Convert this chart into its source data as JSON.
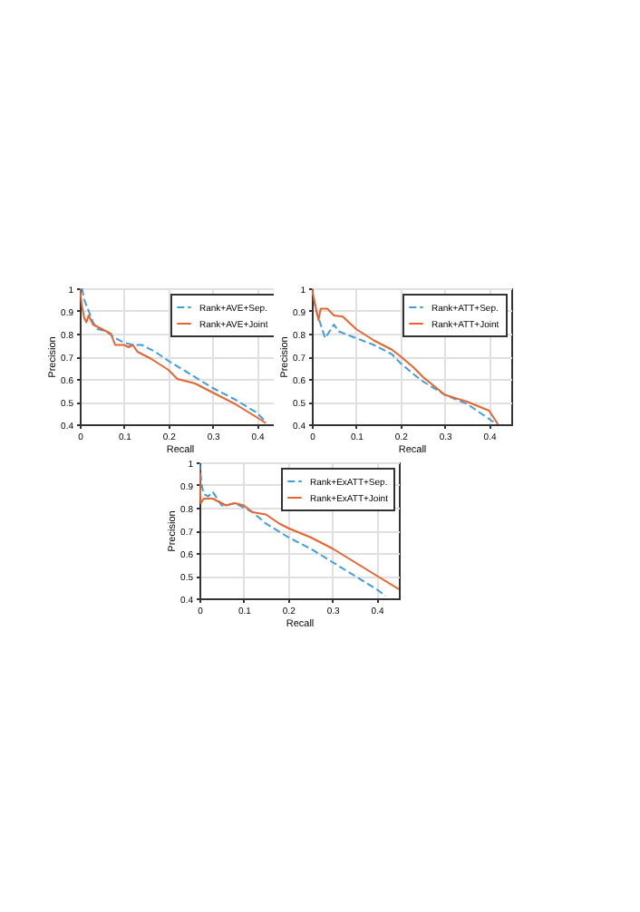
{
  "chart_data": [
    {
      "type": "line",
      "xlabel": "Recall",
      "ylabel": "Precision",
      "xlim": [
        0,
        0.45
      ],
      "ylim": [
        0.4,
        1
      ],
      "xticks": [
        0,
        0.1,
        0.2,
        0.3,
        0.4
      ],
      "yticks": [
        0.4,
        0.5,
        0.6,
        0.7,
        0.8,
        0.9,
        1
      ],
      "grid": true,
      "legend": "top right",
      "series": [
        {
          "name": "Rank+AVE+Sep.",
          "color": "#3d9de0",
          "line_style": "dashed",
          "x": [
            0.005,
            0.01,
            0.02,
            0.03,
            0.04,
            0.06,
            0.08,
            0.1,
            0.12,
            0.14,
            0.17,
            0.2,
            0.25,
            0.3,
            0.35,
            0.4,
            0.42
          ],
          "values": [
            1,
            0.95,
            0.9,
            0.85,
            0.82,
            0.81,
            0.78,
            0.76,
            0.75,
            0.75,
            0.72,
            0.68,
            0.62,
            0.56,
            0.51,
            0.45,
            0.41
          ]
        },
        {
          "name": "Rank+AVE+Joint",
          "color": "#e8642e",
          "line_style": "solid",
          "x": [
            0,
            0.005,
            0.01,
            0.015,
            0.02,
            0.03,
            0.04,
            0.05,
            0.07,
            0.08,
            0.1,
            0.11,
            0.12,
            0.13,
            0.16,
            0.2,
            0.22,
            0.26,
            0.3,
            0.35,
            0.4,
            0.42
          ],
          "values": [
            1,
            0.92,
            0.87,
            0.85,
            0.88,
            0.84,
            0.83,
            0.82,
            0.8,
            0.75,
            0.75,
            0.74,
            0.75,
            0.72,
            0.69,
            0.64,
            0.6,
            0.58,
            0.54,
            0.49,
            0.43,
            0.405
          ]
        }
      ]
    },
    {
      "type": "line",
      "xlabel": "Recall",
      "ylabel": "Precision",
      "xlim": [
        0,
        0.45
      ],
      "ylim": [
        0.4,
        1
      ],
      "xticks": [
        0,
        0.1,
        0.2,
        0.3,
        0.4
      ],
      "yticks": [
        0.4,
        0.5,
        0.6,
        0.7,
        0.8,
        0.9,
        1
      ],
      "grid": true,
      "legend": "top right",
      "series": [
        {
          "name": "Rank+ATT+Sep.",
          "color": "#3d9de0",
          "line_style": "dashed",
          "x": [
            0,
            0.01,
            0.02,
            0.03,
            0.05,
            0.06,
            0.1,
            0.14,
            0.18,
            0.2,
            0.23,
            0.25,
            0.3,
            0.35,
            0.38,
            0.41
          ],
          "values": [
            1,
            0.9,
            0.84,
            0.78,
            0.84,
            0.81,
            0.78,
            0.75,
            0.71,
            0.67,
            0.62,
            0.59,
            0.53,
            0.49,
            0.45,
            0.41
          ]
        },
        {
          "name": "Rank+ATT+Joint",
          "color": "#e8642e",
          "line_style": "solid",
          "x": [
            0,
            0.005,
            0.015,
            0.02,
            0.035,
            0.05,
            0.07,
            0.1,
            0.14,
            0.18,
            0.2,
            0.23,
            0.25,
            0.3,
            0.35,
            0.4,
            0.42
          ],
          "values": [
            1,
            0.95,
            0.86,
            0.91,
            0.91,
            0.88,
            0.875,
            0.82,
            0.77,
            0.73,
            0.7,
            0.65,
            0.61,
            0.53,
            0.5,
            0.46,
            0.4
          ]
        }
      ]
    },
    {
      "type": "line",
      "xlabel": "Recall",
      "ylabel": "Precision",
      "xlim": [
        0,
        0.45
      ],
      "ylim": [
        0.4,
        1
      ],
      "xticks": [
        0,
        0.1,
        0.2,
        0.3,
        0.4
      ],
      "yticks": [
        0.4,
        0.5,
        0.6,
        0.7,
        0.8,
        0.9,
        1
      ],
      "grid": true,
      "legend": "top right",
      "series": [
        {
          "name": "Rank+ExATT+Sep.",
          "color": "#3d9de0",
          "line_style": "dashed",
          "x": [
            0,
            0.005,
            0.01,
            0.02,
            0.03,
            0.05,
            0.06,
            0.08,
            0.1,
            0.12,
            0.15,
            0.2,
            0.25,
            0.3,
            0.35,
            0.4,
            0.42
          ],
          "values": [
            1,
            0.9,
            0.86,
            0.85,
            0.87,
            0.81,
            0.81,
            0.82,
            0.8,
            0.78,
            0.73,
            0.67,
            0.62,
            0.56,
            0.5,
            0.44,
            0.41
          ]
        },
        {
          "name": "Rank+ExATT+Joint",
          "color": "#e8642e",
          "line_style": "solid",
          "x": [
            0,
            0.003,
            0.01,
            0.03,
            0.05,
            0.06,
            0.08,
            0.1,
            0.12,
            0.15,
            0.18,
            0.2,
            0.25,
            0.3,
            0.35,
            0.4,
            0.45
          ],
          "values": [
            0.97,
            0.82,
            0.84,
            0.84,
            0.82,
            0.81,
            0.82,
            0.81,
            0.78,
            0.77,
            0.73,
            0.71,
            0.67,
            0.62,
            0.56,
            0.5,
            0.44
          ]
        }
      ]
    }
  ]
}
